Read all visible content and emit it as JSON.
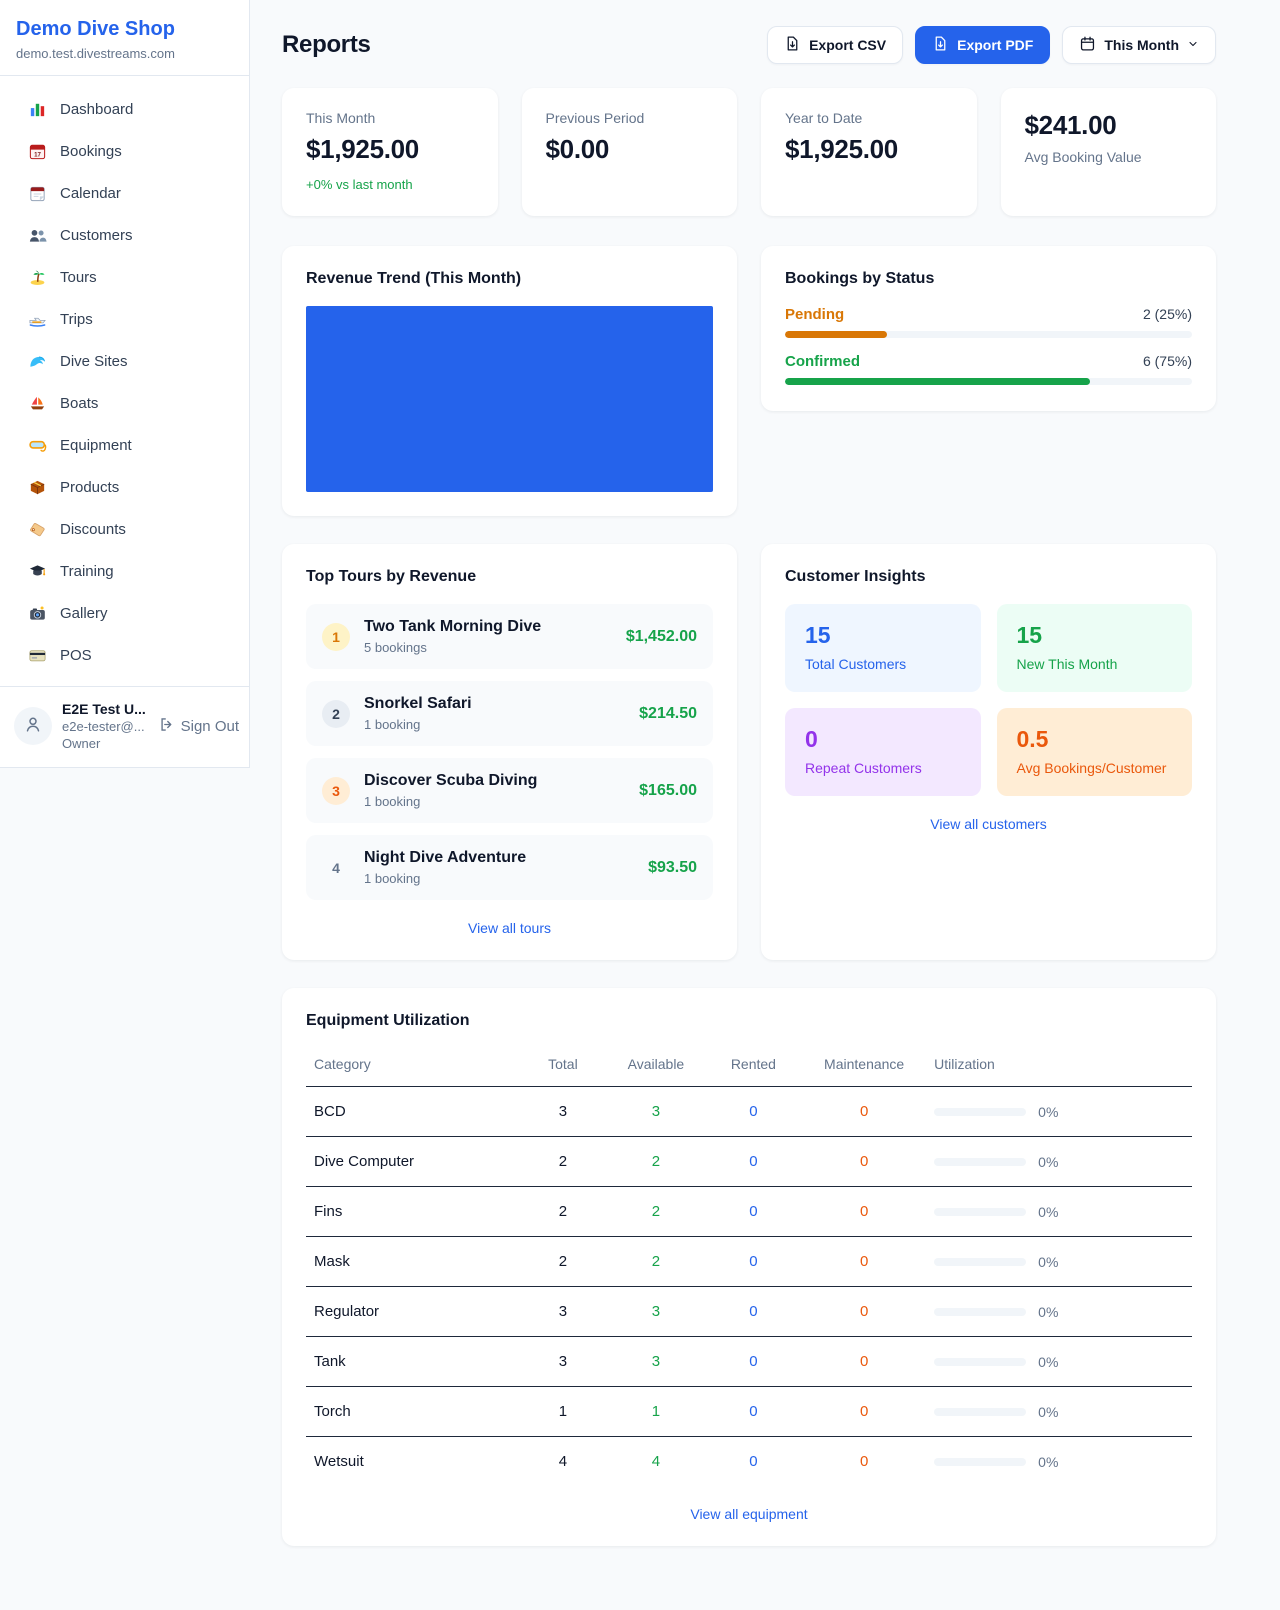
{
  "colors": {
    "accent": "#2563eb",
    "green": "#16a34a",
    "orange": "#d97706",
    "orange_deep": "#ea580c",
    "purple": "#9333ea"
  },
  "sidebar": {
    "brand": {
      "name": "Demo Dive Shop",
      "domain": "demo.test.divestreams.com"
    },
    "nav": [
      {
        "icon": "bar-chart",
        "label": "Dashboard"
      },
      {
        "icon": "calendar-date",
        "label": "Bookings"
      },
      {
        "icon": "tear-off-calendar",
        "label": "Calendar"
      },
      {
        "icon": "people",
        "label": "Customers"
      },
      {
        "icon": "desert-island",
        "label": "Tours"
      },
      {
        "icon": "speedboat",
        "label": "Trips"
      },
      {
        "icon": "water-wave",
        "label": "Dive Sites"
      },
      {
        "icon": "sailboat",
        "label": "Boats"
      },
      {
        "icon": "diving-mask",
        "label": "Equipment"
      },
      {
        "icon": "package",
        "label": "Products"
      },
      {
        "icon": "label-tag",
        "label": "Discounts"
      },
      {
        "icon": "graduation-cap",
        "label": "Training"
      },
      {
        "icon": "camera-flash",
        "label": "Gallery"
      },
      {
        "icon": "credit-card",
        "label": "POS"
      }
    ],
    "user": {
      "name": "E2E Test U...",
      "email": "e2e-tester@...",
      "role": "Owner",
      "signout_label": "Sign Out"
    }
  },
  "header": {
    "title": "Reports",
    "export_csv_label": "Export CSV",
    "export_pdf_label": "Export PDF",
    "period_label": "This Month"
  },
  "stats": [
    {
      "label": "This Month",
      "value": "$1,925.00",
      "delta": "+0% vs last month"
    },
    {
      "label": "Previous Period",
      "value": "$0.00"
    },
    {
      "label": "Year to Date",
      "value": "$1,925.00"
    },
    {
      "label": "Avg Booking Value",
      "value": "$241.00"
    }
  ],
  "revenue_trend": {
    "title": "Revenue Trend (This Month)",
    "chart_data": {
      "type": "bar",
      "categories": [
        "This Month"
      ],
      "values": [
        1925
      ],
      "title": "Revenue Trend (This Month)",
      "xlabel": "",
      "ylabel": "",
      "bar_color": "#2563eb",
      "note": "single bar fills entire plot area, no axes or labels visible"
    }
  },
  "bookings_by_status": {
    "title": "Bookings by Status",
    "rows": [
      {
        "label": "Pending",
        "count_label": "2 (25%)",
        "count": 2,
        "pct": "25%"
      },
      {
        "label": "Confirmed",
        "count_label": "6 (75%)",
        "count": 6,
        "pct": "75%"
      }
    ]
  },
  "top_tours": {
    "title": "Top Tours by Revenue",
    "items": [
      {
        "rank": "1",
        "name": "Two Tank Morning Dive",
        "bookings": "5 bookings",
        "amount": "$1,452.00"
      },
      {
        "rank": "2",
        "name": "Snorkel Safari",
        "bookings": "1 booking",
        "amount": "$214.50"
      },
      {
        "rank": "3",
        "name": "Discover Scuba Diving",
        "bookings": "1 booking",
        "amount": "$165.00"
      },
      {
        "rank": "4",
        "name": "Night Dive Adventure",
        "bookings": "1 booking",
        "amount": "$93.50"
      }
    ],
    "link": "View all tours"
  },
  "customer_insights": {
    "title": "Customer Insights",
    "tiles": [
      {
        "value": "15",
        "label": "Total Customers",
        "theme": "blue"
      },
      {
        "value": "15",
        "label": "New This Month",
        "theme": "green"
      },
      {
        "value": "0",
        "label": "Repeat Customers",
        "theme": "purple"
      },
      {
        "value": "0.5",
        "label": "Avg Bookings/Customer",
        "theme": "orange"
      }
    ],
    "link": "View all customers"
  },
  "equipment": {
    "title": "Equipment Utilization",
    "columns": [
      "Category",
      "Total",
      "Available",
      "Rented",
      "Maintenance",
      "Utilization"
    ],
    "rows": [
      {
        "category": "BCD",
        "total": "3",
        "available": "3",
        "rented": "0",
        "maintenance": "0",
        "utilization": "0%"
      },
      {
        "category": "Dive Computer",
        "total": "2",
        "available": "2",
        "rented": "0",
        "maintenance": "0",
        "utilization": "0%"
      },
      {
        "category": "Fins",
        "total": "2",
        "available": "2",
        "rented": "0",
        "maintenance": "0",
        "utilization": "0%"
      },
      {
        "category": "Mask",
        "total": "2",
        "available": "2",
        "rented": "0",
        "maintenance": "0",
        "utilization": "0%"
      },
      {
        "category": "Regulator",
        "total": "3",
        "available": "3",
        "rented": "0",
        "maintenance": "0",
        "utilization": "0%"
      },
      {
        "category": "Tank",
        "total": "3",
        "available": "3",
        "rented": "0",
        "maintenance": "0",
        "utilization": "0%"
      },
      {
        "category": "Torch",
        "total": "1",
        "available": "1",
        "rented": "0",
        "maintenance": "0",
        "utilization": "0%"
      },
      {
        "category": "Wetsuit",
        "total": "4",
        "available": "4",
        "rented": "0",
        "maintenance": "0",
        "utilization": "0%"
      }
    ],
    "link": "View all equipment"
  }
}
